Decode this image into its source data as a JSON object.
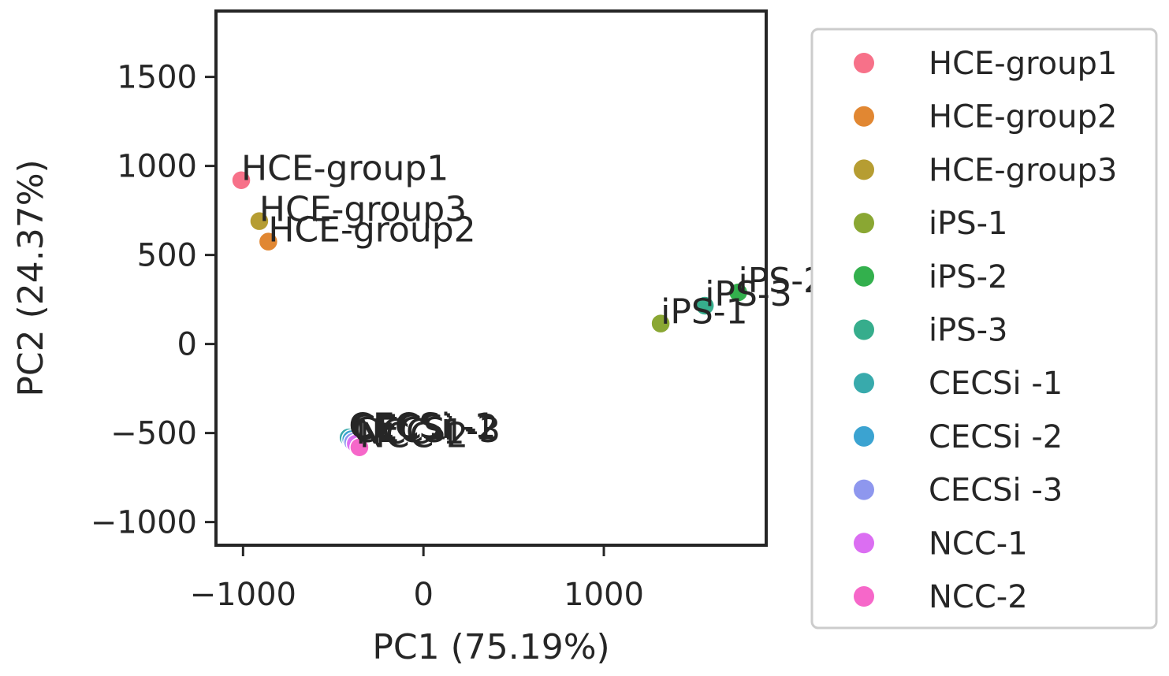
{
  "chart_data": {
    "type": "scatter",
    "title": "",
    "xlabel": "PC1 (75.19%)",
    "ylabel": "PC2 (24.37%)",
    "xlim": [
      -1150,
      1900
    ],
    "ylim": [
      -1130,
      1870
    ],
    "x_ticks": [
      -1000,
      0,
      1000
    ],
    "x_tick_labels": [
      "−1000",
      "0",
      "1000"
    ],
    "y_ticks": [
      -1000,
      -500,
      0,
      500,
      1000,
      1500
    ],
    "y_tick_labels": [
      "−1000",
      "−500",
      "0",
      "500",
      "1000",
      "1500"
    ],
    "grid": false,
    "legend_position": "outside-right",
    "points": [
      {
        "name": "HCE-group1",
        "x": -1010,
        "y": 920,
        "color": "#f77189"
      },
      {
        "name": "HCE-group2",
        "x": -860,
        "y": 575,
        "color": "#e18732"
      },
      {
        "name": "HCE-group3",
        "x": -910,
        "y": 690,
        "color": "#b69d32"
      },
      {
        "name": "iPS-1",
        "x": 1315,
        "y": 115,
        "color": "#8aa733"
      },
      {
        "name": "iPS-2",
        "x": 1745,
        "y": 290,
        "color": "#33b04d"
      },
      {
        "name": "iPS-3",
        "x": 1560,
        "y": 215,
        "color": "#36ad8c"
      },
      {
        "name": "CECSi -1",
        "x": -415,
        "y": -525,
        "color": "#38aaac"
      },
      {
        "name": "CECSi -2",
        "x": -400,
        "y": -535,
        "color": "#3ba3d1"
      },
      {
        "name": "CECSi -3",
        "x": -390,
        "y": -550,
        "color": "#8e97ee"
      },
      {
        "name": "NCC-1",
        "x": -375,
        "y": -560,
        "color": "#db6ef2"
      },
      {
        "name": "NCC-2",
        "x": -355,
        "y": -580,
        "color": "#f667c9"
      }
    ]
  }
}
